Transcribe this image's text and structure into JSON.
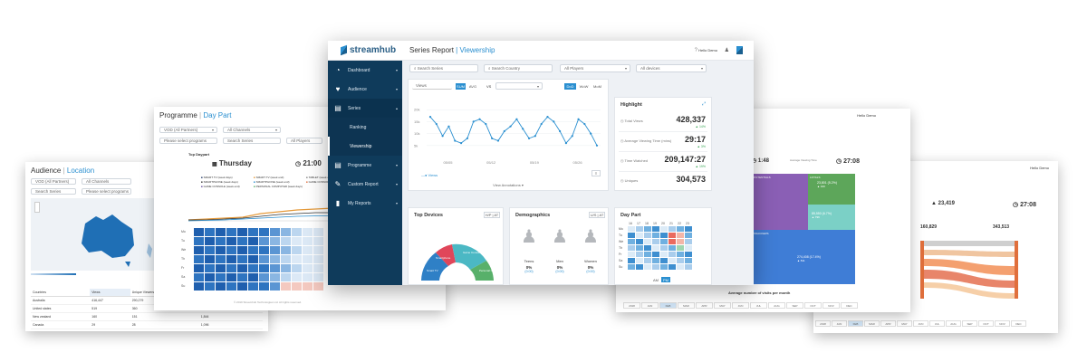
{
  "main": {
    "brand": "streamhub",
    "header_title": "Series Report",
    "header_sub": "Viewership",
    "user": "Hello Demo",
    "sidebar": [
      {
        "label": "Dashboard",
        "icon": "speedometer-icon"
      },
      {
        "label": "Audience",
        "icon": "heart-icon"
      },
      {
        "label": "Series",
        "icon": "film-icon"
      },
      {
        "label": "Programme",
        "icon": "film-icon"
      },
      {
        "label": "Custom Report",
        "icon": "edit-icon"
      },
      {
        "label": "My Reports",
        "icon": "bookmark-icon"
      }
    ],
    "series_sub": [
      "Ranking",
      "Viewership"
    ],
    "filters": {
      "search_series": "Search Series",
      "search_country": "Search Country",
      "players": "All Players",
      "devices": "All devices"
    },
    "metric": "Views",
    "metric_btns": [
      "SUM",
      "AVG"
    ],
    "vs": "VS",
    "period_btns": [
      "DoD",
      "WoW",
      "MoM"
    ],
    "line_chart": {
      "yticks": [
        "20k",
        "15k",
        "10k",
        "5k"
      ],
      "xticks": [
        "05/05",
        "05/12",
        "05/19",
        "05/26"
      ],
      "legend": "Views",
      "values": [
        17,
        14,
        9,
        13,
        7,
        6,
        8,
        15,
        16,
        14,
        8,
        7,
        11,
        13,
        16,
        12,
        8,
        9,
        14,
        17,
        15,
        11,
        6,
        9,
        16,
        14,
        10,
        5
      ],
      "view_annotations": "View Annotations"
    },
    "highlight": {
      "title": "Highlight",
      "stats": [
        {
          "label": "Total Views",
          "value": "428,337",
          "change": "▲ 14%"
        },
        {
          "label": "Average Viewing Time (mins)",
          "value": "29:17",
          "change": "▲ 3%"
        },
        {
          "label": "Time Watched",
          "value": "209,147:27",
          "change": "▲ 19%"
        },
        {
          "label": "Uniques",
          "value": "304,573",
          "change": ""
        }
      ]
    },
    "top_devices": {
      "title": "Top Devices",
      "toggle": "H/P | AT",
      "segments": [
        {
          "label": "Smart TV",
          "color": "#2f80c6"
        },
        {
          "label": "Smartphone",
          "color": "#e0465a"
        },
        {
          "label": "Game Console",
          "color": "#4bb8c4"
        },
        {
          "label": "Personal Computer",
          "color": "#58b06a"
        }
      ]
    },
    "demographics": {
      "title": "Demographics",
      "toggle": "U/S | AT",
      "groups": [
        {
          "label": "Teens",
          "pct": "0%",
          "sub": "(0.00)"
        },
        {
          "label": "Men",
          "pct": "0%",
          "sub": "(0.00)"
        },
        {
          "label": "Women",
          "pct": "0%",
          "sub": "(0.00)"
        }
      ]
    },
    "day_part": {
      "title": "Day Part",
      "hours": [
        "16",
        "17",
        "18",
        "19",
        "20",
        "21",
        "22",
        "23"
      ],
      "days": [
        "Mo",
        "Tu",
        "We",
        "Th",
        "Fr",
        "Sa",
        "Su"
      ],
      "ampm": [
        "AM",
        "PM"
      ]
    }
  },
  "programme": {
    "title": "Programme",
    "sub": "Day Part",
    "vod": "VOD (All Partners)",
    "channels": "All Channels",
    "search_prog": "Please select programs",
    "search_series": "Search Series",
    "players": "All Players",
    "top_daypart": "Top Daypart",
    "day": "Thursday",
    "time": "21:00",
    "legend": [
      "SMART TV (week days)",
      "SMART TV (week end)",
      "TABLET (week days)",
      "SMARTPHONE (week days)",
      "SMARTPHONE (week end)",
      "GAME CONSOLE (week days)",
      "GAME CONSOLE (week end)",
      "PERSONAL COMPUTER (week days)"
    ],
    "days": [
      "Mo",
      "Tu",
      "We",
      "Th",
      "Fr",
      "Sa",
      "Su"
    ],
    "footer": "© 2019 Streamhub Technologies Ltd. All rights reserved."
  },
  "audience": {
    "title": "Audience",
    "sub": "Location",
    "vod": "VOD (All Partners)",
    "channels": "All Channels",
    "search_series": "Search Series",
    "search_prog": "Please select programs",
    "columns": [
      "Countries",
      "Views",
      "Unique Viewers",
      "Time Watched"
    ],
    "rows": [
      [
        "Australia",
        "416,447",
        "290,279",
        "1,040,041"
      ],
      [
        "United states",
        "519",
        "360",
        "1,040"
      ],
      [
        "New zealand",
        "160",
        "151",
        "1,844"
      ],
      [
        "Canada",
        "29",
        "28",
        "1,096"
      ],
      [
        "Japan",
        "28",
        "23",
        "413"
      ]
    ]
  },
  "right1": {
    "stat_time": "1:48",
    "stat_label": "Average Viewing Time",
    "stat_big": "27:08",
    "segments": [
      {
        "label": "POTENTIALS"
      },
      {
        "label": "LOYALS",
        "value": "23,801 (5.2%)",
        "chg": "▲ 320"
      },
      {
        "label": "",
        "value": "85,550 (6.7%)",
        "chg": "▲ 796"
      },
      {
        "label": "SNACKERS",
        "value": "274,408 (17.4%)",
        "chg": "▲ 811"
      }
    ],
    "axis_title": "Average number of visits per month",
    "months": [
      "2018",
      "JAN",
      "FEB",
      "MAR",
      "APR",
      "MAY",
      "JUN",
      "JUL",
      "AUG",
      "SEP",
      "OCT",
      "NOV",
      "DEC"
    ]
  },
  "right2": {
    "stat1": "23,419",
    "stat2": "27:08",
    "left_total": "160,829",
    "right_total": "343,513",
    "left_labels": [
      "NEW USERS",
      "LOYALS",
      "",
      "SNACKERS",
      "CHURNED"
    ],
    "right_labels": [
      "NEW USERS",
      "LOYALS",
      "",
      "POTENTIAL LOYALS",
      "CHURNED"
    ],
    "months": [
      "2018",
      "JAN",
      "FEB",
      "MAR",
      "APR",
      "MAY",
      "JUN",
      "JUL",
      "AUG",
      "SEP",
      "OCT",
      "NOV",
      "DEC"
    ]
  }
}
